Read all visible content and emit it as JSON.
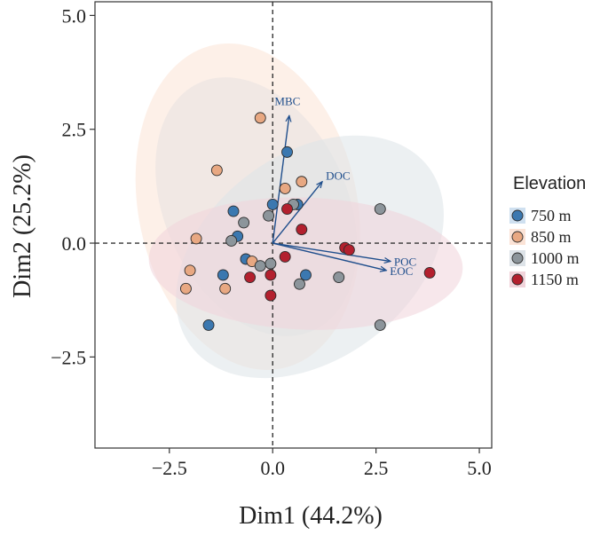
{
  "chart_data": {
    "type": "scatter",
    "subtype": "pca-biplot",
    "xlabel": "Dim1 (44.2%)",
    "ylabel": "Dim2 (25.2%)",
    "xlim": [
      -4.3,
      5.3
    ],
    "ylim": [
      -4.5,
      5.3
    ],
    "xticks": [
      -2.5,
      0.0,
      2.5,
      5.0
    ],
    "yticks": [
      -2.5,
      0.0,
      2.5,
      5.0
    ],
    "x_tick_labels": [
      "−2.5",
      "0.0",
      "2.5",
      "5.0"
    ],
    "y_tick_labels": [
      "−2.5",
      "0.0",
      "2.5",
      "5.0"
    ],
    "legend": {
      "title": "Elevation",
      "position": "right",
      "entries": [
        {
          "label": "750 m",
          "color": "#3b78b0"
        },
        {
          "label": "850 m",
          "color": "#e8a882"
        },
        {
          "label": "1000 m",
          "color": "#8c959b"
        },
        {
          "label": "1150 m",
          "color": "#b3202e"
        }
      ]
    },
    "series": [
      {
        "name": "750 m",
        "color": "#3b78b0",
        "ellipse_fill": "#cfe0f0",
        "ellipse": {
          "cx": -0.4,
          "cy": 0.8,
          "rx": 3.3,
          "ry": 2.0,
          "angle_deg": -65
        },
        "points": [
          [
            0.35,
            2.0
          ],
          [
            0.0,
            0.85
          ],
          [
            0.6,
            0.85
          ],
          [
            -0.95,
            0.7
          ],
          [
            -0.85,
            0.15
          ],
          [
            0.8,
            -0.7
          ],
          [
            -0.65,
            -0.35
          ],
          [
            -1.2,
            -0.7
          ],
          [
            -1.55,
            -1.8
          ]
        ]
      },
      {
        "name": "850 m",
        "color": "#e8a882",
        "ellipse_fill": "#fbe3d6",
        "ellipse": {
          "cx": -0.6,
          "cy": 0.8,
          "rx": 4.0,
          "ry": 2.4,
          "angle_deg": -78
        },
        "points": [
          [
            -0.3,
            2.75
          ],
          [
            -1.35,
            1.6
          ],
          [
            0.7,
            1.35
          ],
          [
            0.3,
            1.2
          ],
          [
            -1.85,
            0.1
          ],
          [
            -2.0,
            -0.6
          ],
          [
            -0.5,
            -0.4
          ],
          [
            -1.15,
            -1.0
          ],
          [
            -2.1,
            -1.0
          ]
        ]
      },
      {
        "name": "1000 m",
        "color": "#8c959b",
        "ellipse_fill": "#dde3e8",
        "ellipse": {
          "cx": 0.9,
          "cy": -0.3,
          "rx": 3.6,
          "ry": 2.25,
          "angle_deg": 37
        },
        "points": [
          [
            2.6,
            0.75
          ],
          [
            0.5,
            0.85
          ],
          [
            -0.1,
            0.6
          ],
          [
            -0.7,
            0.45
          ],
          [
            -1.0,
            0.05
          ],
          [
            -0.05,
            -0.45
          ],
          [
            -0.3,
            -0.5
          ],
          [
            1.6,
            -0.75
          ],
          [
            0.65,
            -0.9
          ],
          [
            2.6,
            -1.8
          ]
        ]
      },
      {
        "name": "1150 m",
        "color": "#b3202e",
        "ellipse_fill": "#f1d3da",
        "ellipse": {
          "cx": 0.8,
          "cy": -0.45,
          "rx": 3.8,
          "ry": 1.45,
          "angle_deg": -2
        },
        "points": [
          [
            0.35,
            0.75
          ],
          [
            0.7,
            0.3
          ],
          [
            0.3,
            -0.3
          ],
          [
            1.75,
            -0.1
          ],
          [
            1.85,
            -0.15
          ],
          [
            3.8,
            -0.65
          ],
          [
            -0.05,
            -0.7
          ],
          [
            -0.55,
            -0.75
          ],
          [
            -0.05,
            -1.15
          ]
        ]
      }
    ],
    "vectors": [
      {
        "label": "MBC",
        "x": 0.4,
        "y": 2.8
      },
      {
        "label": "DOC",
        "x": 1.2,
        "y": 1.35
      },
      {
        "label": "POC",
        "x": 2.85,
        "y": -0.4
      },
      {
        "label": "EOC",
        "x": 2.75,
        "y": -0.6
      }
    ],
    "reference_lines": {
      "x": 0,
      "y": 0,
      "style": "dashed"
    }
  }
}
